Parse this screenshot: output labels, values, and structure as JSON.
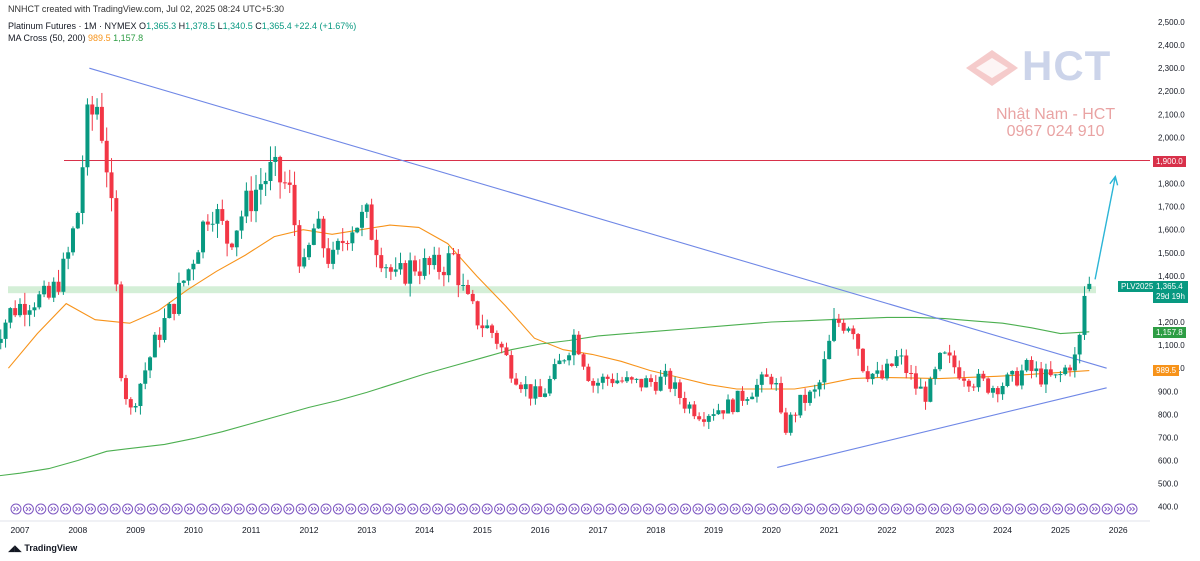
{
  "header": {
    "created_line": "NNHCT created with TradingView.com, Jul 02, 2025 08:24 UTC+5:30",
    "symbol": "Platinum Futures · 1M · NYMEX",
    "ohlc": {
      "O": "1,365.3",
      "H": "1,378.5",
      "L": "1,340.5",
      "C": "1,365.4"
    },
    "change": "+22.4 (+1.67%)",
    "ma_title": "MA Cross (50, 200)",
    "ma50_value": "989.5",
    "ma200_value": "1,157.8"
  },
  "labels": {
    "level_1900": "1,900.0",
    "symbol_tag": "PLV2025",
    "last_price": "1,365.4",
    "countdown": "29d 19h",
    "ma200_tag": "1,157.8",
    "ma50_tag": "989.5"
  },
  "watermark": {
    "brand": "HCT",
    "name": "Nhật Nam - HCT",
    "phone": "0967 024 910"
  },
  "footer": {
    "brand": "TradingView"
  },
  "colors": {
    "up": "#089981",
    "down": "#f23645",
    "ma50": "#f7931a",
    "ma200": "#4caf50",
    "trend": "#6f87e6",
    "level": "#d8314a",
    "zone": "#b7e4bd",
    "arrow": "#2bb5d6"
  },
  "chart_data": {
    "type": "candlestick",
    "interval": "monthly",
    "ylim": [
      380,
      2520
    ],
    "y_ticks": [
      "2,500.0",
      "2,400.0",
      "2,300.0",
      "2,200.0",
      "2,100.0",
      "2,000.0",
      "1,900.0",
      "1,800.0",
      "1,700.0",
      "1,600.0",
      "1,500.0",
      "1,400.0",
      "1,300.0",
      "1,200.0",
      "1,100.0",
      "1,000.0",
      "900.0",
      "800.0",
      "700.0",
      "600.0",
      "500.0",
      "400.0"
    ],
    "y_tick_values": [
      2500,
      2400,
      2300,
      2200,
      2100,
      2000,
      1900,
      1800,
      1700,
      1600,
      1500,
      1400,
      1300,
      1200,
      1100,
      1000,
      900,
      800,
      700,
      600,
      500,
      400
    ],
    "x_ticks": [
      "2007",
      "2008",
      "2009",
      "2010",
      "2011",
      "2012",
      "2013",
      "2014",
      "2015",
      "2016",
      "2017",
      "2018",
      "2019",
      "2020",
      "2021",
      "2022",
      "2023",
      "2024",
      "2025",
      "2026"
    ],
    "x_tick_years": [
      2007,
      2008,
      2009,
      2010,
      2011,
      2012,
      2013,
      2014,
      2015,
      2016,
      2017,
      2018,
      2019,
      2020,
      2021,
      2022,
      2023,
      2024,
      2025,
      2026
    ],
    "anchors": [
      [
        2006.5,
        1100
      ],
      [
        2006.85,
        1250
      ],
      [
        2007.2,
        1300
      ],
      [
        2007.5,
        1300
      ],
      [
        2007.8,
        1450
      ],
      [
        2008.0,
        1680
      ],
      [
        2008.15,
        2050
      ],
      [
        2008.35,
        2150
      ],
      [
        2008.55,
        1800
      ],
      [
        2008.75,
        1000
      ],
      [
        2008.9,
        800
      ],
      [
        2009.1,
        950
      ],
      [
        2009.4,
        1150
      ],
      [
        2009.7,
        1300
      ],
      [
        2009.95,
        1450
      ],
      [
        2010.3,
        1720
      ],
      [
        2010.6,
        1550
      ],
      [
        2010.9,
        1700
      ],
      [
        2011.15,
        1800
      ],
      [
        2011.35,
        1850
      ],
      [
        2011.65,
        1780
      ],
      [
        2011.9,
        1400
      ],
      [
        2012.1,
        1620
      ],
      [
        2012.4,
        1450
      ],
      [
        2012.7,
        1620
      ],
      [
        2013.0,
        1650
      ],
      [
        2013.2,
        1520
      ],
      [
        2013.5,
        1380
      ],
      [
        2013.8,
        1450
      ],
      [
        2014.2,
        1430
      ],
      [
        2014.5,
        1480
      ],
      [
        2014.7,
        1300
      ],
      [
        2014.95,
        1200
      ],
      [
        2015.2,
        1150
      ],
      [
        2015.5,
        1000
      ],
      [
        2015.8,
        900
      ],
      [
        2016.0,
        870
      ],
      [
        2016.3,
        1000
      ],
      [
        2016.6,
        1150
      ],
      [
        2016.9,
        930
      ],
      [
        2017.2,
        960
      ],
      [
        2017.6,
        930
      ],
      [
        2017.9,
        940
      ],
      [
        2018.2,
        950
      ],
      [
        2018.5,
        850
      ],
      [
        2018.8,
        800
      ],
      [
        2019.0,
        820
      ],
      [
        2019.3,
        840
      ],
      [
        2019.6,
        900
      ],
      [
        2019.8,
        930
      ],
      [
        2020.05,
        970
      ],
      [
        2020.2,
        720
      ],
      [
        2020.5,
        850
      ],
      [
        2020.8,
        900
      ],
      [
        2020.95,
        1050
      ],
      [
        2021.1,
        1200
      ],
      [
        2021.4,
        1200
      ],
      [
        2021.6,
        1000
      ],
      [
        2021.9,
        950
      ],
      [
        2022.2,
        1050
      ],
      [
        2022.5,
        920
      ],
      [
        2022.7,
        880
      ],
      [
        2022.95,
        1050
      ],
      [
        2023.2,
        1000
      ],
      [
        2023.5,
        950
      ],
      [
        2023.8,
        920
      ],
      [
        2024.2,
        950
      ],
      [
        2024.4,
        1000
      ],
      [
        2024.7,
        960
      ],
      [
        2024.95,
        950
      ],
      [
        2025.15,
        1020
      ],
      [
        2025.3,
        1050
      ],
      [
        2025.42,
        1320
      ],
      [
        2025.5,
        1365.4
      ]
    ],
    "series": [
      {
        "name": "MA 50",
        "points": [
          [
            2006.8,
            1000
          ],
          [
            2007.3,
            1150
          ],
          [
            2007.8,
            1280
          ],
          [
            2008.3,
            1210
          ],
          [
            2008.9,
            1195
          ],
          [
            2009.4,
            1250
          ],
          [
            2009.9,
            1340
          ],
          [
            2010.4,
            1420
          ],
          [
            2010.9,
            1490
          ],
          [
            2011.4,
            1570
          ],
          [
            2011.9,
            1600
          ],
          [
            2012.4,
            1580
          ],
          [
            2012.9,
            1600
          ],
          [
            2013.4,
            1620
          ],
          [
            2013.9,
            1610
          ],
          [
            2014.4,
            1540
          ],
          [
            2014.9,
            1400
          ],
          [
            2015.4,
            1270
          ],
          [
            2015.9,
            1130
          ],
          [
            2016.4,
            1080
          ],
          [
            2016.9,
            1060
          ],
          [
            2017.4,
            1030
          ],
          [
            2017.9,
            990
          ],
          [
            2018.4,
            960
          ],
          [
            2018.9,
            930
          ],
          [
            2019.4,
            910
          ],
          [
            2019.9,
            910
          ],
          [
            2020.4,
            910
          ],
          [
            2020.9,
            930
          ],
          [
            2021.4,
            955
          ],
          [
            2021.9,
            960
          ],
          [
            2022.4,
            958
          ],
          [
            2022.9,
            955
          ],
          [
            2023.4,
            960
          ],
          [
            2023.9,
            965
          ],
          [
            2024.4,
            972
          ],
          [
            2024.9,
            980
          ],
          [
            2025.5,
            989.5
          ]
        ]
      },
      {
        "name": "MA 200",
        "points": [
          [
            2006.5,
            530
          ],
          [
            2007.0,
            545
          ],
          [
            2007.5,
            565
          ],
          [
            2008.0,
            600
          ],
          [
            2008.5,
            640
          ],
          [
            2009.0,
            655
          ],
          [
            2009.5,
            670
          ],
          [
            2010.0,
            695
          ],
          [
            2010.5,
            725
          ],
          [
            2011.0,
            760
          ],
          [
            2011.5,
            795
          ],
          [
            2012.0,
            830
          ],
          [
            2012.5,
            860
          ],
          [
            2013.0,
            895
          ],
          [
            2013.5,
            935
          ],
          [
            2014.0,
            975
          ],
          [
            2014.5,
            1010
          ],
          [
            2015.0,
            1045
          ],
          [
            2015.5,
            1080
          ],
          [
            2016.0,
            1105
          ],
          [
            2016.5,
            1120
          ],
          [
            2017.0,
            1140
          ],
          [
            2017.5,
            1150
          ],
          [
            2018.0,
            1160
          ],
          [
            2018.5,
            1170
          ],
          [
            2019.0,
            1180
          ],
          [
            2019.5,
            1190
          ],
          [
            2020.0,
            1200
          ],
          [
            2020.5,
            1205
          ],
          [
            2021.0,
            1210
          ],
          [
            2021.5,
            1215
          ],
          [
            2022.0,
            1220
          ],
          [
            2022.5,
            1220
          ],
          [
            2023.0,
            1215
          ],
          [
            2023.5,
            1205
          ],
          [
            2024.0,
            1195
          ],
          [
            2024.5,
            1175
          ],
          [
            2025.0,
            1150
          ],
          [
            2025.5,
            1157.8
          ]
        ]
      }
    ],
    "trendlines": [
      {
        "from": [
          2008.2,
          2300
        ],
        "to": [
          2025.8,
          1000
        ]
      },
      {
        "from": [
          2020.1,
          570
        ],
        "to": [
          2025.8,
          915
        ]
      }
    ],
    "horizontal_level": 1900,
    "support_zone": [
      1325,
      1355
    ],
    "projection_arrow": {
      "from": [
        2025.6,
        1385
      ],
      "to": [
        2025.95,
        1830
      ]
    }
  }
}
